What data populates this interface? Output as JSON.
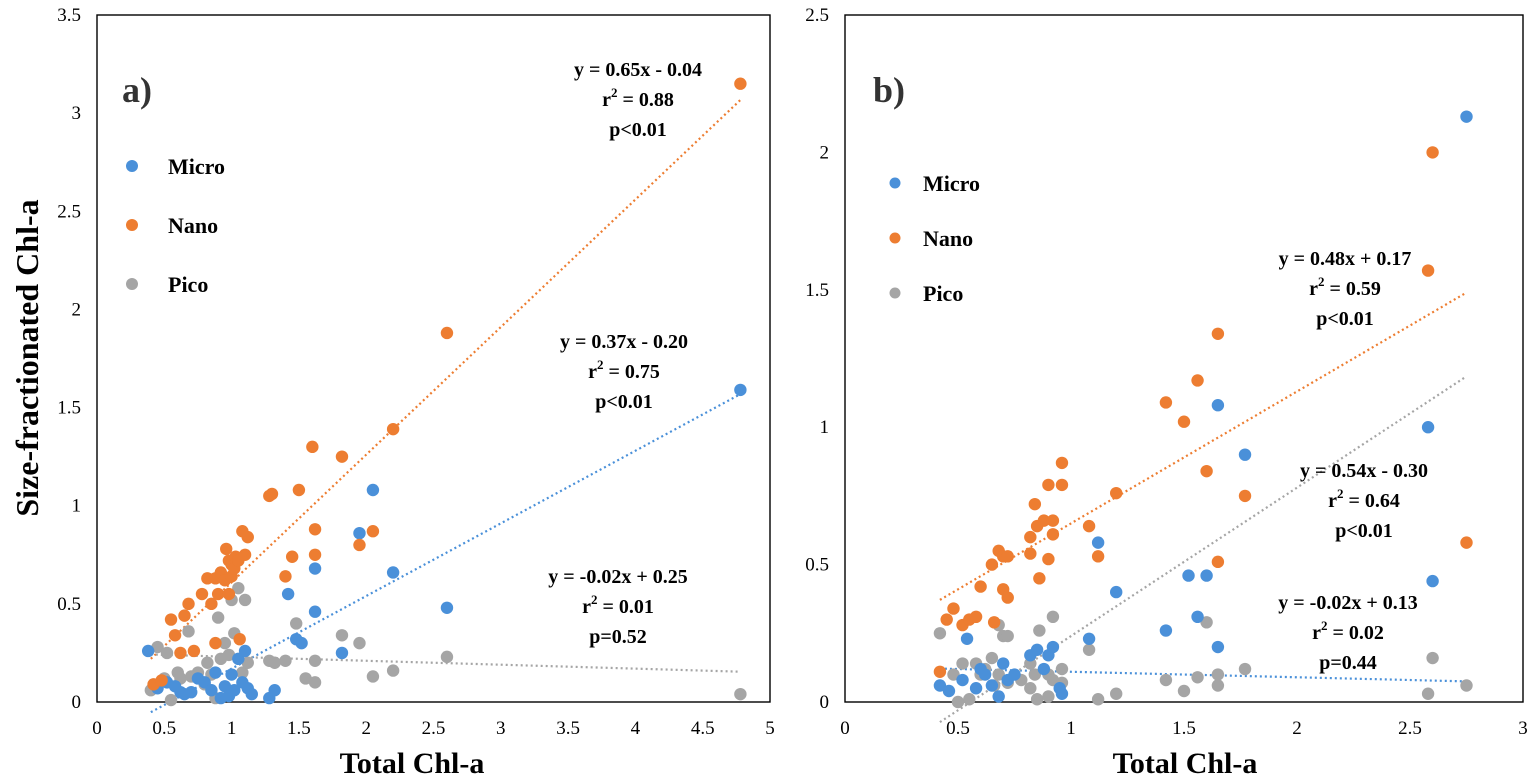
{
  "y_label": "Size-fractionated Chl-a",
  "colors": {
    "Micro": "#4a90d9",
    "Nano": "#ed7d31",
    "Pico": "#a5a5a5"
  },
  "chart_data": [
    {
      "type": "scatter",
      "panel_label": "a)",
      "xlabel": "Total Chl-a",
      "ylabel": "Size-fractionated Chl-a",
      "xlim": [
        0,
        5
      ],
      "ylim": [
        0,
        3.5
      ],
      "x_ticks": [
        "0",
        "0.5",
        "1",
        "1.5",
        "2",
        "2.5",
        "3",
        "3.5",
        "4",
        "4.5",
        "5"
      ],
      "y_ticks": [
        "0",
        "0.5",
        "1",
        "1.5",
        "2",
        "2.5",
        "3",
        "3.5"
      ],
      "legend": [
        "Micro",
        "Nano",
        "Pico"
      ],
      "series": [
        {
          "name": "Micro",
          "trend": {
            "slope": 0.37,
            "intercept": -0.2,
            "x_range": [
              0.4,
              4.78
            ]
          },
          "annotation": {
            "eq": "y = 0.37x - 0.20",
            "r2_prefix": "r",
            "r2_value": "= 0.75",
            "p": "p<0.01"
          },
          "points": [
            [
              0.38,
              0.26
            ],
            [
              0.45,
              0.07
            ],
            [
              0.52,
              0.1
            ],
            [
              0.58,
              0.08
            ],
            [
              0.62,
              0.05
            ],
            [
              0.65,
              0.04
            ],
            [
              0.7,
              0.05
            ],
            [
              0.75,
              0.12
            ],
            [
              0.8,
              0.1
            ],
            [
              0.85,
              0.06
            ],
            [
              0.88,
              0.15
            ],
            [
              0.92,
              0.02
            ],
            [
              0.95,
              0.08
            ],
            [
              0.98,
              0.03
            ],
            [
              1.0,
              0.14
            ],
            [
              1.02,
              0.06
            ],
            [
              1.05,
              0.22
            ],
            [
              1.08,
              0.1
            ],
            [
              1.1,
              0.26
            ],
            [
              1.12,
              0.07
            ],
            [
              1.15,
              0.04
            ],
            [
              1.28,
              0.02
            ],
            [
              1.32,
              0.06
            ],
            [
              1.42,
              0.55
            ],
            [
              1.48,
              0.32
            ],
            [
              1.52,
              0.3
            ],
            [
              1.62,
              0.46
            ],
            [
              1.62,
              0.68
            ],
            [
              1.82,
              0.25
            ],
            [
              1.95,
              0.86
            ],
            [
              2.05,
              1.08
            ],
            [
              2.2,
              0.66
            ],
            [
              2.6,
              0.48
            ],
            [
              4.78,
              1.59
            ]
          ]
        },
        {
          "name": "Nano",
          "trend": {
            "slope": 0.65,
            "intercept": -0.04,
            "x_range": [
              0.4,
              4.78
            ]
          },
          "annotation": {
            "eq": "y = 0.65x - 0.04",
            "r2_prefix": "r",
            "r2_value": "= 0.88",
            "p": "p<0.01"
          },
          "points": [
            [
              0.42,
              0.09
            ],
            [
              0.48,
              0.11
            ],
            [
              0.55,
              0.42
            ],
            [
              0.58,
              0.34
            ],
            [
              0.62,
              0.25
            ],
            [
              0.65,
              0.44
            ],
            [
              0.68,
              0.5
            ],
            [
              0.72,
              0.26
            ],
            [
              0.78,
              0.55
            ],
            [
              0.82,
              0.63
            ],
            [
              0.85,
              0.5
            ],
            [
              0.88,
              0.63
            ],
            [
              0.88,
              0.3
            ],
            [
              0.9,
              0.55
            ],
            [
              0.92,
              0.66
            ],
            [
              0.95,
              0.62
            ],
            [
              0.96,
              0.78
            ],
            [
              0.98,
              0.72
            ],
            [
              0.98,
              0.55
            ],
            [
              1.0,
              0.64
            ],
            [
              1.0,
              0.7
            ],
            [
              1.02,
              0.68
            ],
            [
              1.03,
              0.74
            ],
            [
              1.05,
              0.72
            ],
            [
              1.06,
              0.32
            ],
            [
              1.08,
              0.87
            ],
            [
              1.1,
              0.75
            ],
            [
              1.12,
              0.84
            ],
            [
              1.28,
              1.05
            ],
            [
              1.3,
              1.06
            ],
            [
              1.4,
              0.64
            ],
            [
              1.45,
              0.74
            ],
            [
              1.5,
              1.08
            ],
            [
              1.6,
              1.3
            ],
            [
              1.62,
              0.88
            ],
            [
              1.62,
              0.75
            ],
            [
              1.82,
              1.25
            ],
            [
              1.95,
              0.8
            ],
            [
              2.05,
              0.87
            ],
            [
              2.2,
              1.39
            ],
            [
              2.6,
              1.88
            ],
            [
              4.78,
              3.15
            ]
          ]
        },
        {
          "name": "Pico",
          "trend": {
            "slope": -0.02,
            "intercept": 0.25,
            "x_range": [
              0.4,
              4.78
            ]
          },
          "annotation": {
            "eq": "y = -0.02x + 0.25",
            "r2_prefix": "r",
            "r2_value": "= 0.01",
            "p": "p=0.52"
          },
          "points": [
            [
              0.4,
              0.06
            ],
            [
              0.45,
              0.28
            ],
            [
              0.5,
              0.12
            ],
            [
              0.52,
              0.25
            ],
            [
              0.55,
              0.01
            ],
            [
              0.6,
              0.15
            ],
            [
              0.62,
              0.12
            ],
            [
              0.68,
              0.36
            ],
            [
              0.7,
              0.13
            ],
            [
              0.75,
              0.15
            ],
            [
              0.8,
              0.09
            ],
            [
              0.82,
              0.2
            ],
            [
              0.85,
              0.14
            ],
            [
              0.88,
              0.02
            ],
            [
              0.9,
              0.43
            ],
            [
              0.92,
              0.22
            ],
            [
              0.95,
              0.3
            ],
            [
              0.98,
              0.24
            ],
            [
              1.0,
              0.52
            ],
            [
              1.02,
              0.35
            ],
            [
              1.05,
              0.58
            ],
            [
              1.08,
              0.15
            ],
            [
              1.1,
              0.52
            ],
            [
              1.12,
              0.2
            ],
            [
              1.28,
              0.21
            ],
            [
              1.32,
              0.2
            ],
            [
              1.4,
              0.21
            ],
            [
              1.48,
              0.4
            ],
            [
              1.55,
              0.12
            ],
            [
              1.62,
              0.21
            ],
            [
              1.62,
              0.1
            ],
            [
              1.82,
              0.34
            ],
            [
              1.95,
              0.3
            ],
            [
              2.05,
              0.13
            ],
            [
              2.2,
              0.16
            ],
            [
              2.6,
              0.23
            ],
            [
              4.78,
              0.04
            ]
          ]
        }
      ]
    },
    {
      "type": "scatter",
      "panel_label": "b)",
      "xlabel": "Total Chl-a",
      "ylabel": "",
      "xlim": [
        0,
        3
      ],
      "ylim": [
        0,
        2.5
      ],
      "x_ticks": [
        "0",
        "0.5",
        "1",
        "1.5",
        "2",
        "2.5",
        "3"
      ],
      "y_ticks": [
        "0",
        "0.5",
        "1",
        "1.5",
        "2",
        "2.5"
      ],
      "legend": [
        "Micro",
        "Nano",
        "Pico"
      ],
      "series": [
        {
          "name": "Micro",
          "trend": {
            "slope": -0.02,
            "intercept": 0.13,
            "x_range": [
              0.42,
              2.75
            ]
          },
          "annotation": {
            "eq": "y = -0.02x + 0.13",
            "r2_prefix": "r",
            "r2_value": "= 0.02",
            "p": "p=0.44"
          },
          "points": [
            [
              0.42,
              0.06
            ],
            [
              0.46,
              0.04
            ],
            [
              0.52,
              0.08
            ],
            [
              0.54,
              0.23
            ],
            [
              0.58,
              0.05
            ],
            [
              0.6,
              0.12
            ],
            [
              0.62,
              0.1
            ],
            [
              0.65,
              0.06
            ],
            [
              0.68,
              0.02
            ],
            [
              0.7,
              0.14
            ],
            [
              0.72,
              0.08
            ],
            [
              0.75,
              0.1
            ],
            [
              0.82,
              0.17
            ],
            [
              0.85,
              0.19
            ],
            [
              0.88,
              0.12
            ],
            [
              0.9,
              0.17
            ],
            [
              0.92,
              0.2
            ],
            [
              0.95,
              0.05
            ],
            [
              0.96,
              0.03
            ],
            [
              1.08,
              0.23
            ],
            [
              1.12,
              0.58
            ],
            [
              1.2,
              0.4
            ],
            [
              1.42,
              0.26
            ],
            [
              1.52,
              0.46
            ],
            [
              1.56,
              0.31
            ],
            [
              1.6,
              0.46
            ],
            [
              1.65,
              0.2
            ],
            [
              1.65,
              1.08
            ],
            [
              1.77,
              0.9
            ],
            [
              2.58,
              1.0
            ],
            [
              2.6,
              0.44
            ],
            [
              2.75,
              2.13
            ]
          ]
        },
        {
          "name": "Nano",
          "trend": {
            "slope": 0.48,
            "intercept": 0.17,
            "x_range": [
              0.42,
              2.75
            ]
          },
          "annotation": {
            "eq": "y = 0.48x + 0.17",
            "r2_prefix": "r",
            "r2_value": "= 0.59",
            "p": "p<0.01"
          },
          "points": [
            [
              0.42,
              0.11
            ],
            [
              0.45,
              0.3
            ],
            [
              0.48,
              0.34
            ],
            [
              0.52,
              0.28
            ],
            [
              0.55,
              0.3
            ],
            [
              0.58,
              0.31
            ],
            [
              0.6,
              0.42
            ],
            [
              0.65,
              0.5
            ],
            [
              0.66,
              0.29
            ],
            [
              0.68,
              0.55
            ],
            [
              0.7,
              0.41
            ],
            [
              0.7,
              0.53
            ],
            [
              0.72,
              0.53
            ],
            [
              0.72,
              0.38
            ],
            [
              0.82,
              0.6
            ],
            [
              0.82,
              0.54
            ],
            [
              0.84,
              0.72
            ],
            [
              0.85,
              0.64
            ],
            [
              0.86,
              0.45
            ],
            [
              0.88,
              0.66
            ],
            [
              0.9,
              0.79
            ],
            [
              0.9,
              0.52
            ],
            [
              0.92,
              0.66
            ],
            [
              0.92,
              0.61
            ],
            [
              0.96,
              0.79
            ],
            [
              0.96,
              0.87
            ],
            [
              1.08,
              0.64
            ],
            [
              1.12,
              0.53
            ],
            [
              1.2,
              0.76
            ],
            [
              1.42,
              1.09
            ],
            [
              1.5,
              1.02
            ],
            [
              1.56,
              1.17
            ],
            [
              1.6,
              0.84
            ],
            [
              1.65,
              1.34
            ],
            [
              1.65,
              0.51
            ],
            [
              1.77,
              0.75
            ],
            [
              2.58,
              1.57
            ],
            [
              2.6,
              2.0
            ],
            [
              2.75,
              0.58
            ]
          ]
        },
        {
          "name": "Pico",
          "trend": {
            "slope": 0.54,
            "intercept": -0.3,
            "x_range": [
              0.42,
              2.75
            ]
          },
          "annotation": {
            "eq": "y = 0.54x - 0.30",
            "r2_prefix": "r",
            "r2_value": "= 0.64",
            "p": "p<0.01"
          },
          "points": [
            [
              0.42,
              0.25
            ],
            [
              0.48,
              0.1
            ],
            [
              0.5,
              0.0
            ],
            [
              0.52,
              0.14
            ],
            [
              0.55,
              0.01
            ],
            [
              0.58,
              0.14
            ],
            [
              0.6,
              0.1
            ],
            [
              0.62,
              0.12
            ],
            [
              0.65,
              0.16
            ],
            [
              0.66,
              0.06
            ],
            [
              0.68,
              0.28
            ],
            [
              0.68,
              0.1
            ],
            [
              0.7,
              0.24
            ],
            [
              0.72,
              0.24
            ],
            [
              0.72,
              0.07
            ],
            [
              0.78,
              0.08
            ],
            [
              0.82,
              0.05
            ],
            [
              0.82,
              0.14
            ],
            [
              0.84,
              0.1
            ],
            [
              0.85,
              0.01
            ],
            [
              0.86,
              0.26
            ],
            [
              0.9,
              0.1
            ],
            [
              0.9,
              0.02
            ],
            [
              0.92,
              0.31
            ],
            [
              0.92,
              0.08
            ],
            [
              0.96,
              0.12
            ],
            [
              0.96,
              0.07
            ],
            [
              1.08,
              0.19
            ],
            [
              1.12,
              0.01
            ],
            [
              1.2,
              0.03
            ],
            [
              1.42,
              0.08
            ],
            [
              1.5,
              0.04
            ],
            [
              1.56,
              0.09
            ],
            [
              1.6,
              0.29
            ],
            [
              1.65,
              0.06
            ],
            [
              1.65,
              0.1
            ],
            [
              1.77,
              0.12
            ],
            [
              2.58,
              0.03
            ],
            [
              2.6,
              0.16
            ],
            [
              2.75,
              0.06
            ]
          ]
        }
      ]
    }
  ]
}
